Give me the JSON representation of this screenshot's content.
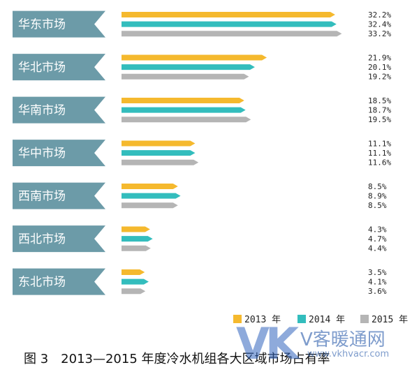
{
  "chart_data": {
    "type": "bar",
    "orientation": "horizontal",
    "categories": [
      "华东市场",
      "华北市场",
      "华南市场",
      "华中市场",
      "西南市场",
      "西北市场",
      "东北市场"
    ],
    "series": [
      {
        "name": "2013 年",
        "color": "#F5B92E",
        "values": [
          32.2,
          21.9,
          18.5,
          11.1,
          8.5,
          4.3,
          3.5
        ],
        "labels": [
          "32.2%",
          "21.9%",
          "18.5%",
          "11.1%",
          "8.5%",
          "4.3%",
          "3.5%"
        ]
      },
      {
        "name": "2014 年",
        "color": "#33BDBD",
        "values": [
          32.4,
          20.1,
          18.7,
          11.1,
          8.9,
          4.7,
          4.1
        ],
        "labels": [
          "32.4%",
          "20.1%",
          "18.7%",
          "11.1%",
          "8.9%",
          "4.7%",
          "4.1%"
        ]
      },
      {
        "name": "2015 年",
        "color": "#B5B5B5",
        "values": [
          33.2,
          19.2,
          19.5,
          11.6,
          8.5,
          4.4,
          3.6
        ],
        "labels": [
          "33.2%",
          "19.2%",
          "19.5%",
          "11.6%",
          "8.5%",
          "4.4%",
          "3.6%"
        ]
      }
    ],
    "ribbon_color": "#6C9BA8",
    "legend_position": "bottom-right",
    "grid": false
  },
  "caption": "图 3　2013—2015 年度冷水机组各大区域市场占有率",
  "watermark": {
    "mark": "VK",
    "name": "V客暖通网",
    "url": "www.vkhvacr.com"
  }
}
